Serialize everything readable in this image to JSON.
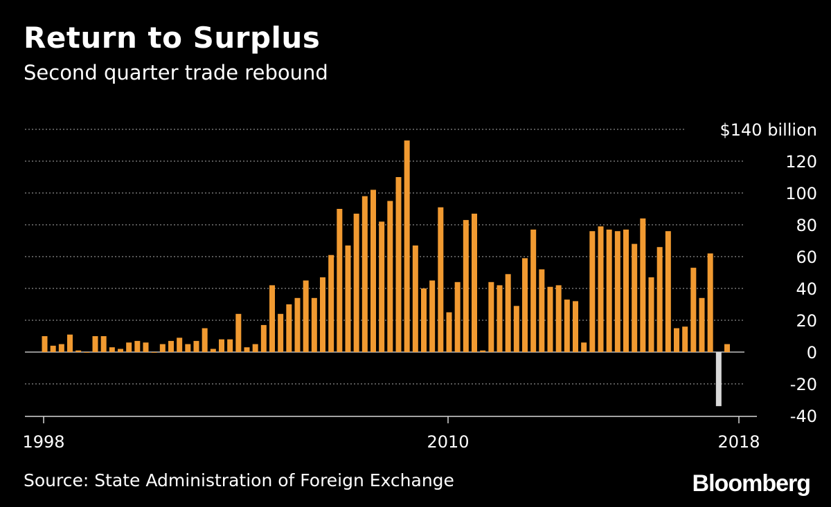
{
  "header": {
    "title": "Return to Surplus",
    "subtitle": "Second quarter trade rebound"
  },
  "footer": {
    "source": "Source: State Administration of Foreign Exchange",
    "brand": "Bloomberg"
  },
  "colors": {
    "background": "#000000",
    "positive_bar": "#f19a31",
    "negative_bar": "#d9d9d9",
    "gridline": "#8c8c8c",
    "text": "#ffffff"
  },
  "chart_data": {
    "type": "bar",
    "title": "Return to Surplus",
    "subtitle": "Second quarter trade rebound",
    "ylabel": "",
    "y_unit_label": "$140 billion",
    "ylim": [
      -40,
      140
    ],
    "y_ticks": [
      -40,
      -20,
      0,
      20,
      40,
      60,
      80,
      100,
      120,
      140
    ],
    "y_tick_labels": [
      "-40",
      "-20",
      "0",
      "20",
      "40",
      "60",
      "80",
      "100",
      "120",
      "$140 billion"
    ],
    "x_tick_labels": [
      "1998",
      "2010",
      "2018"
    ],
    "grid": true,
    "frequency": "quarterly",
    "start_period": "1998 Q1",
    "series": [
      {
        "values": [
          10,
          4,
          5,
          11,
          1,
          0,
          10,
          10,
          3,
          2,
          6,
          7,
          6,
          0,
          5,
          7,
          9,
          5,
          7,
          15,
          2,
          8,
          8,
          24,
          3,
          5,
          17,
          42,
          24,
          30,
          34,
          45,
          34,
          47,
          61,
          90,
          67,
          87,
          98,
          102,
          82,
          95,
          110,
          133,
          67,
          40,
          45,
          91,
          25,
          44,
          83,
          87,
          1,
          44,
          42,
          49,
          29,
          59,
          77,
          52,
          41,
          42,
          33,
          32,
          6,
          76,
          79,
          77,
          76,
          77,
          68,
          84,
          47,
          66,
          76,
          15,
          16,
          53,
          34,
          62,
          -34,
          5
        ]
      }
    ]
  }
}
